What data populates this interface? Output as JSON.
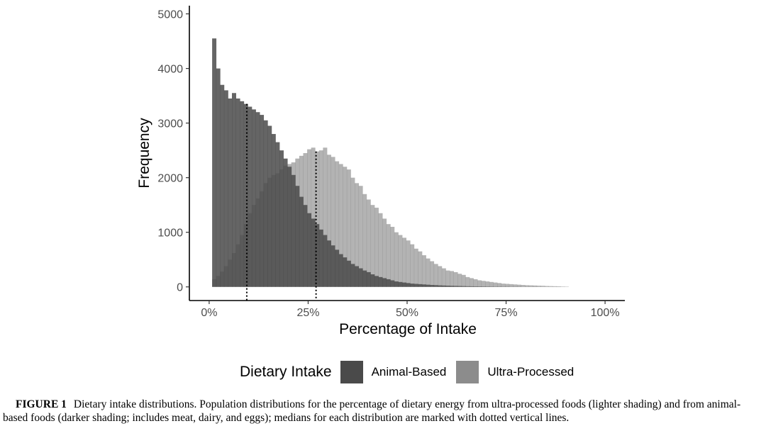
{
  "chart_data": {
    "type": "histogram",
    "xlabel": "Percentage of Intake",
    "ylabel": "Frequency",
    "xlim": [
      -0.05,
      1.05
    ],
    "ylim": [
      -250,
      5150
    ],
    "x_ticks": [
      0,
      0.25,
      0.5,
      0.75,
      1.0
    ],
    "x_tick_labels": [
      "0%",
      "25%",
      "50%",
      "75%",
      "100%"
    ],
    "y_ticks": [
      0,
      1000,
      2000,
      3000,
      4000,
      5000
    ],
    "y_tick_labels": [
      "0",
      "1000",
      "2000",
      "3000",
      "4000",
      "5000"
    ],
    "bin_start": 0.0075,
    "bin_width": 0.01,
    "grid": false,
    "legend_position": "bottom",
    "legend_title": "Dietary Intake",
    "series": [
      {
        "name": "Animal-Based",
        "color": "#4a4a4a",
        "median": 0.095,
        "counts": [
          4550,
          4000,
          3700,
          3600,
          3450,
          3550,
          3450,
          3400,
          3350,
          3300,
          3250,
          3200,
          3150,
          3050,
          2950,
          2800,
          2650,
          2500,
          2350,
          2200,
          2050,
          1850,
          1650,
          1500,
          1350,
          1250,
          1150,
          1050,
          950,
          850,
          760,
          680,
          600,
          540,
          480,
          420,
          380,
          340,
          300,
          270,
          230,
          200,
          180,
          160,
          140,
          120,
          100,
          90,
          80,
          70,
          60,
          55,
          50,
          45,
          40,
          35,
          32,
          28,
          25,
          22,
          20,
          18,
          16,
          14,
          12,
          11,
          10,
          9,
          8,
          7,
          6,
          5,
          5,
          4,
          4,
          3,
          3,
          3,
          2,
          2,
          2,
          2,
          1,
          1,
          1,
          1,
          1,
          1,
          0,
          0
        ]
      },
      {
        "name": "Ultra-Processed",
        "color": "#808080",
        "median": 0.27,
        "counts": [
          140,
          200,
          280,
          380,
          500,
          620,
          780,
          950,
          1150,
          1350,
          1500,
          1620,
          1750,
          1900,
          2000,
          2050,
          2080,
          2150,
          2220,
          2250,
          2280,
          2350,
          2400,
          2450,
          2520,
          2550,
          2480,
          2500,
          2550,
          2420,
          2380,
          2300,
          2250,
          2200,
          2150,
          2000,
          1900,
          1850,
          1700,
          1600,
          1500,
          1450,
          1350,
          1250,
          1150,
          1100,
          1000,
          950,
          900,
          850,
          780,
          700,
          650,
          580,
          520,
          470,
          420,
          380,
          340,
          300,
          290,
          270,
          240,
          220,
          180,
          160,
          140,
          120,
          110,
          100,
          90,
          80,
          70,
          60,
          55,
          50,
          45,
          40,
          35,
          30,
          28,
          25,
          22,
          20,
          16,
          14,
          12,
          10,
          8,
          6
        ]
      }
    ]
  },
  "caption": {
    "label": "FIGURE 1",
    "text": "Dietary intake distributions. Population distributions for the percentage of dietary energy from ultra-processed foods (lighter shading) and from animal-based foods (darker shading; includes meat, dairy, and eggs); medians for each distribution are marked with dotted vertical lines."
  }
}
